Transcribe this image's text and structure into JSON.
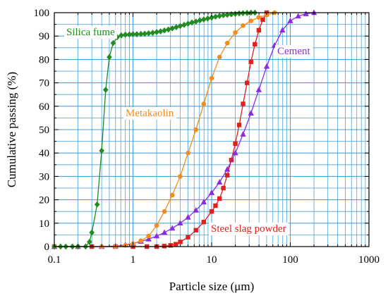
{
  "chart_data": {
    "type": "scatter",
    "xlabel": "Particle size (μm)",
    "ylabel": "Cumulative passing (%)",
    "xscale": "log",
    "xlim": [
      0.1,
      1000
    ],
    "ylim": [
      0,
      100
    ],
    "x_ticks": [
      "0.1",
      "1",
      "10",
      "100",
      "1000"
    ],
    "y_ticks": [
      "0",
      "10",
      "20",
      "30",
      "40",
      "50",
      "60",
      "70",
      "80",
      "90",
      "100"
    ],
    "grid": true,
    "grid_color": "#4aa3df",
    "series": [
      {
        "name": "Silica fume",
        "color": "#228b22",
        "marker": "diamond",
        "x": [
          0.1,
          0.12,
          0.14,
          0.17,
          0.2,
          0.25,
          0.28,
          0.3,
          0.35,
          0.4,
          0.45,
          0.5,
          0.56,
          0.63,
          0.71,
          0.8,
          0.9,
          1.0,
          1.12,
          1.26,
          1.41,
          1.58,
          1.78,
          2.0,
          2.24,
          2.51,
          2.82,
          3.16,
          3.55,
          3.98,
          4.47,
          5.01,
          5.62,
          6.31,
          7.08,
          7.94,
          8.91,
          10.0,
          11.2,
          12.6,
          14.1,
          15.8,
          17.8,
          20.0,
          22.4,
          25.1,
          28.2,
          31.6,
          35.5
        ],
        "y": [
          0,
          0,
          0,
          0,
          0,
          0,
          2,
          6,
          18,
          41,
          67,
          81,
          87,
          89.5,
          90.3,
          90.6,
          90.7,
          90.8,
          90.8,
          90.9,
          91,
          91.2,
          91.4,
          91.7,
          92,
          92.4,
          92.8,
          93.3,
          93.8,
          94.3,
          94.8,
          95.3,
          95.8,
          96.2,
          96.7,
          97.1,
          97.5,
          97.9,
          98.3,
          98.6,
          98.9,
          99.1,
          99.3,
          99.5,
          99.7,
          99.8,
          99.9,
          100,
          100
        ]
      },
      {
        "name": "Metakaolin",
        "color": "#f28c1c",
        "marker": "circle",
        "x": [
          0.1,
          0.2,
          0.4,
          0.6,
          0.8,
          1.0,
          1.26,
          1.58,
          2.0,
          2.51,
          3.16,
          3.98,
          5.01,
          6.31,
          7.94,
          10.0,
          12.6,
          15.8,
          20.0,
          25.1,
          31.6,
          39.8,
          50.1,
          63.1
        ],
        "y": [
          0,
          0,
          0,
          0,
          0.5,
          1.2,
          2.5,
          4.5,
          9,
          15,
          22,
          30,
          40,
          50,
          61,
          72,
          81,
          87,
          91.5,
          94.5,
          96.5,
          98,
          99,
          100
        ]
      },
      {
        "name": "Cement",
        "color": "#8a2be2",
        "marker": "triangle",
        "x": [
          0.1,
          0.2,
          0.4,
          0.6,
          0.8,
          1.0,
          1.26,
          1.58,
          2.0,
          2.51,
          3.16,
          3.98,
          5.01,
          6.31,
          7.94,
          10.0,
          12.6,
          15.8,
          20.0,
          25.1,
          31.6,
          39.8,
          50.1,
          63.1,
          79.4,
          100,
          126,
          158,
          200
        ],
        "y": [
          0,
          0,
          0,
          0.2,
          0.7,
          1.3,
          2.2,
          3.2,
          4.5,
          6,
          7.8,
          10,
          12.5,
          15.5,
          19,
          23,
          27.5,
          33,
          40,
          48,
          57,
          67,
          77,
          86,
          92.5,
          96.5,
          98.5,
          99.5,
          100
        ]
      },
      {
        "name": "Steel slag powder",
        "color": "#e0201b",
        "marker": "square",
        "x": [
          0.1,
          0.3,
          0.6,
          1.0,
          1.5,
          2.0,
          2.5,
          3.0,
          3.5,
          4.0,
          5.01,
          6.31,
          7.94,
          10.0,
          11.2,
          12.6,
          14.1,
          15.8,
          17.8,
          20.0,
          22.4,
          25.1,
          28.2,
          31.6,
          35.5,
          39.8,
          44.7,
          50.1
        ],
        "y": [
          0,
          0,
          0,
          0,
          0,
          0,
          0.2,
          0.5,
          1,
          2,
          4,
          7,
          10.5,
          15,
          17.5,
          20.5,
          25,
          30.5,
          37,
          44,
          52,
          61,
          70,
          79,
          86.5,
          92.5,
          97,
          100
        ]
      }
    ],
    "annotations": [
      {
        "text": "Silica fume",
        "series": 0
      },
      {
        "text": "Metakaolin",
        "series": 1
      },
      {
        "text": "Cement",
        "series": 2
      },
      {
        "text": "Steel slag powder",
        "series": 3
      }
    ]
  }
}
